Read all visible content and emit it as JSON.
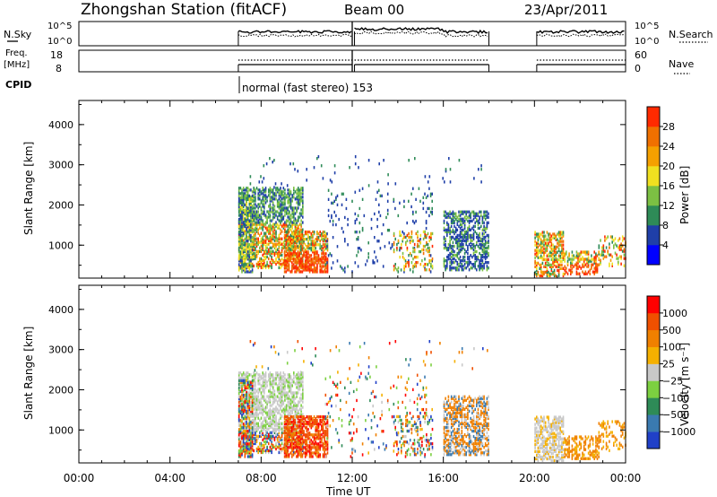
{
  "header": {
    "station": "Zhongshan Station (fitACF)",
    "beam": "Beam 00",
    "date": "23/Apr/2011"
  },
  "top_panel": {
    "left_label": "N.Sky",
    "right_label": "N.Search",
    "left_ticks": [
      "10^5",
      "10^0"
    ],
    "right_ticks": [
      "10^5",
      "10^0"
    ]
  },
  "freq_panel": {
    "left_label_1": "Freq.",
    "left_label_2": "[MHz]",
    "right_label": "Nave",
    "left_ticks": [
      "18",
      "8"
    ],
    "right_ticks": [
      "60",
      "0"
    ]
  },
  "cpid": {
    "label": "CPID",
    "mode": "normal (fast stereo) 153"
  },
  "colors": {
    "power": [
      "#0000ff",
      "#1f3fa8",
      "#2e8b57",
      "#7cc043",
      "#f0e020",
      "#f5a000",
      "#f07000",
      "#ff2a00"
    ],
    "velocity": [
      "#2040c8",
      "#3a7ab0",
      "#2e8b57",
      "#7cd040",
      "#c8c8c8",
      "#f5b000",
      "#f08000",
      "#f05000",
      "#ff0000"
    ]
  },
  "chart_data": [
    {
      "type": "heatmap",
      "name": "power",
      "ylabel": "Slant Range [km]",
      "yticks": [
        "4000",
        "3000",
        "2000",
        "1000"
      ],
      "ylim": [
        180,
        4600
      ],
      "xlim": [
        0,
        24
      ],
      "colorbar_label": "Power [dB]",
      "colorbar_ticks": [
        "28",
        "24",
        "20",
        "16",
        "12",
        "8",
        "4"
      ],
      "clim": [
        0,
        32
      ]
    },
    {
      "type": "heatmap",
      "name": "velocity",
      "ylabel": "Slant Range [km]",
      "yticks": [
        "4000",
        "3000",
        "2000",
        "1000"
      ],
      "ylim": [
        180,
        4600
      ],
      "xlim": [
        0,
        24
      ],
      "colorbar_label": "Velocity [m s⁻¹]",
      "colorbar_ticks": [
        "1000",
        "500",
        "100",
        "25",
        "−25",
        "−100",
        "−500",
        "−1000"
      ]
    }
  ],
  "xaxis": {
    "ticks": [
      "00:00",
      "04:00",
      "08:00",
      "12:00",
      "16:00",
      "20:00",
      "00:00"
    ],
    "label": "Time UT"
  }
}
